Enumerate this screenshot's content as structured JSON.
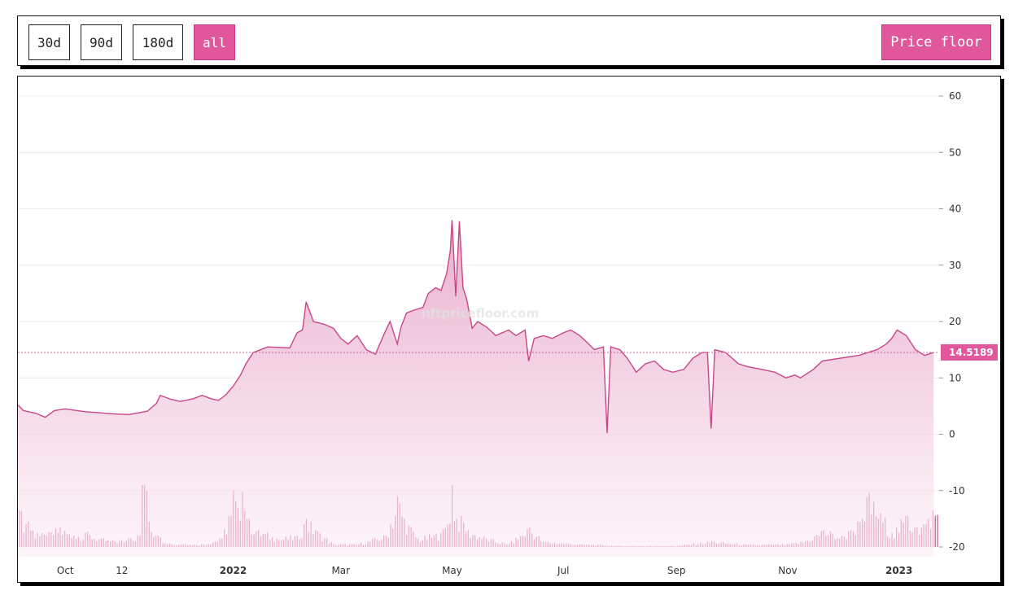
{
  "controls": {
    "ranges": [
      "30d",
      "90d",
      "180d",
      "all"
    ],
    "active_range": "all",
    "metric_label": "Price floor"
  },
  "colors": {
    "accent": "#e0589b",
    "line": "#c9468a",
    "area_top": "#e7a9c8",
    "grid": "#ececec",
    "text": "#333333"
  },
  "watermark": "nftpricefloor.com",
  "chart_data": {
    "type": "area",
    "title": "",
    "xlabel": "",
    "ylabel": "",
    "ylim": [
      -20,
      60
    ],
    "yticks": [
      60,
      50,
      40,
      30,
      20,
      10,
      0,
      -10,
      -20
    ],
    "x_tick_labels": [
      {
        "label": "Oct",
        "date": "2021-10-01",
        "bold": false
      },
      {
        "label": "12",
        "date": "2021-11-01",
        "bold": false
      },
      {
        "label": "2022",
        "date": "2022-01-01",
        "bold": true
      },
      {
        "label": "Mar",
        "date": "2022-03-01",
        "bold": false
      },
      {
        "label": "May",
        "date": "2022-05-01",
        "bold": false
      },
      {
        "label": "Jul",
        "date": "2022-07-01",
        "bold": false
      },
      {
        "label": "Sep",
        "date": "2022-09-01",
        "bold": false
      },
      {
        "label": "Nov",
        "date": "2022-11-01",
        "bold": false
      },
      {
        "label": "2023",
        "date": "2023-01-01",
        "bold": true
      }
    ],
    "x_range": [
      "2021-09-05",
      "2023-01-23"
    ],
    "last_value_label": "14.5189",
    "last_value": 14.5189,
    "series": [
      {
        "values": [
          [
            "2021-09-05",
            5.2
          ],
          [
            "2021-09-08",
            4.2
          ],
          [
            "2021-09-15",
            3.7
          ],
          [
            "2021-09-20",
            3.0
          ],
          [
            "2021-09-25",
            4.2
          ],
          [
            "2021-10-01",
            4.5
          ],
          [
            "2021-10-05",
            4.3
          ],
          [
            "2021-10-12",
            4.0
          ],
          [
            "2021-10-20",
            3.8
          ],
          [
            "2021-10-28",
            3.6
          ],
          [
            "2021-11-05",
            3.5
          ],
          [
            "2021-11-10",
            3.8
          ],
          [
            "2021-11-15",
            4.1
          ],
          [
            "2021-11-20",
            5.5
          ],
          [
            "2021-11-22",
            6.9
          ],
          [
            "2021-11-28",
            6.2
          ],
          [
            "2021-12-03",
            5.8
          ],
          [
            "2021-12-10",
            6.3
          ],
          [
            "2021-12-15",
            6.9
          ],
          [
            "2021-12-20",
            6.3
          ],
          [
            "2021-12-24",
            6.0
          ],
          [
            "2021-12-28",
            7.0
          ],
          [
            "2022-01-01",
            8.5
          ],
          [
            "2022-01-05",
            10.5
          ],
          [
            "2022-01-08",
            12.5
          ],
          [
            "2022-01-12",
            14.5
          ],
          [
            "2022-01-20",
            15.5
          ],
          [
            "2022-02-01",
            15.3
          ],
          [
            "2022-02-05",
            18.0
          ],
          [
            "2022-02-08",
            18.5
          ],
          [
            "2022-02-10",
            23.5
          ],
          [
            "2022-02-14",
            20.0
          ],
          [
            "2022-02-20",
            19.5
          ],
          [
            "2022-02-25",
            18.8
          ],
          [
            "2022-03-01",
            17.0
          ],
          [
            "2022-03-05",
            16.0
          ],
          [
            "2022-03-10",
            17.5
          ],
          [
            "2022-03-15",
            15.0
          ],
          [
            "2022-03-20",
            14.2
          ],
          [
            "2022-03-25",
            18.0
          ],
          [
            "2022-03-28",
            20.0
          ],
          [
            "2022-04-01",
            16.0
          ],
          [
            "2022-04-03",
            19.0
          ],
          [
            "2022-04-06",
            21.5
          ],
          [
            "2022-04-10",
            22.0
          ],
          [
            "2022-04-15",
            22.5
          ],
          [
            "2022-04-18",
            25.0
          ],
          [
            "2022-04-22",
            26.0
          ],
          [
            "2022-04-25",
            25.5
          ],
          [
            "2022-04-28",
            28.5
          ],
          [
            "2022-04-30",
            32.5
          ],
          [
            "2022-05-01",
            38.0
          ],
          [
            "2022-05-03",
            24.5
          ],
          [
            "2022-05-05",
            37.8
          ],
          [
            "2022-05-07",
            26.0
          ],
          [
            "2022-05-09",
            24.0
          ],
          [
            "2022-05-12",
            18.8
          ],
          [
            "2022-05-15",
            20.0
          ],
          [
            "2022-05-20",
            19.0
          ],
          [
            "2022-05-25",
            17.5
          ],
          [
            "2022-06-01",
            18.5
          ],
          [
            "2022-06-05",
            17.5
          ],
          [
            "2022-06-10",
            18.5
          ],
          [
            "2022-06-12",
            13.0
          ],
          [
            "2022-06-15",
            17.0
          ],
          [
            "2022-06-20",
            17.5
          ],
          [
            "2022-06-25",
            17.0
          ],
          [
            "2022-07-01",
            18.0
          ],
          [
            "2022-07-05",
            18.5
          ],
          [
            "2022-07-10",
            17.5
          ],
          [
            "2022-07-15",
            16.0
          ],
          [
            "2022-07-18",
            15.0
          ],
          [
            "2022-07-23",
            15.5
          ],
          [
            "2022-07-25",
            0.2
          ],
          [
            "2022-07-27",
            15.5
          ],
          [
            "2022-08-01",
            15.0
          ],
          [
            "2022-08-05",
            13.5
          ],
          [
            "2022-08-10",
            11.0
          ],
          [
            "2022-08-15",
            12.5
          ],
          [
            "2022-08-20",
            13.0
          ],
          [
            "2022-08-25",
            11.5
          ],
          [
            "2022-08-30",
            11.0
          ],
          [
            "2022-09-05",
            11.5
          ],
          [
            "2022-09-10",
            13.5
          ],
          [
            "2022-09-15",
            14.5
          ],
          [
            "2022-09-18",
            14.5
          ],
          [
            "2022-09-20",
            1.0
          ],
          [
            "2022-09-22",
            15.0
          ],
          [
            "2022-09-28",
            14.5
          ],
          [
            "2022-10-05",
            12.5
          ],
          [
            "2022-10-10",
            12.0
          ],
          [
            "2022-10-18",
            11.5
          ],
          [
            "2022-10-25",
            11.0
          ],
          [
            "2022-10-31",
            10.0
          ],
          [
            "2022-11-05",
            10.5
          ],
          [
            "2022-11-08",
            10.0
          ],
          [
            "2022-11-15",
            11.5
          ],
          [
            "2022-11-20",
            13.0
          ],
          [
            "2022-11-30",
            13.5
          ],
          [
            "2022-12-10",
            14.0
          ],
          [
            "2022-12-20",
            15.0
          ],
          [
            "2022-12-25",
            16.0
          ],
          [
            "2022-12-28",
            17.0
          ],
          [
            "2022-12-31",
            18.5
          ],
          [
            "2023-01-05",
            17.5
          ],
          [
            "2023-01-10",
            15.0
          ],
          [
            "2023-01-15",
            14.0
          ],
          [
            "2023-01-20",
            14.5189
          ]
        ]
      }
    ],
    "volume_bars": [
      [
        "2021-09-05",
        -13.5
      ],
      [
        "2021-09-10",
        -15.5
      ],
      [
        "2021-09-15",
        -17.5
      ],
      [
        "2021-09-20",
        -18.0
      ],
      [
        "2021-09-28",
        -16.5
      ],
      [
        "2021-10-05",
        -18.0
      ],
      [
        "2021-10-12",
        -17.5
      ],
      [
        "2021-10-20",
        -18.5
      ],
      [
        "2021-10-28",
        -19.0
      ],
      [
        "2021-11-05",
        -18.5
      ],
      [
        "2021-11-10",
        -18.0
      ],
      [
        "2021-11-12",
        -9.0
      ],
      [
        "2021-11-14",
        -10.0
      ],
      [
        "2021-11-16",
        -15.5
      ],
      [
        "2021-11-20",
        -18.0
      ],
      [
        "2021-11-28",
        -19.5
      ],
      [
        "2021-12-05",
        -19.5
      ],
      [
        "2021-12-15",
        -19.5
      ],
      [
        "2021-12-25",
        -18.5
      ],
      [
        "2021-12-30",
        -14.5
      ],
      [
        "2022-01-01",
        -10.0
      ],
      [
        "2022-01-03",
        -13.0
      ],
      [
        "2022-01-06",
        -10.2
      ],
      [
        "2022-01-09",
        -15.0
      ],
      [
        "2022-01-15",
        -17.0
      ],
      [
        "2022-01-25",
        -18.5
      ],
      [
        "2022-02-05",
        -18.0
      ],
      [
        "2022-02-10",
        -15.0
      ],
      [
        "2022-02-15",
        -17.0
      ],
      [
        "2022-02-25",
        -19.5
      ],
      [
        "2022-03-10",
        -19.5
      ],
      [
        "2022-03-25",
        -18.0
      ],
      [
        "2022-03-28",
        -16.0
      ],
      [
        "2022-04-01",
        -11.0
      ],
      [
        "2022-04-05",
        -15.0
      ],
      [
        "2022-04-12",
        -18.5
      ],
      [
        "2022-04-25",
        -17.5
      ],
      [
        "2022-04-28",
        -16.0
      ],
      [
        "2022-05-01",
        -9.0
      ],
      [
        "2022-05-03",
        -15.0
      ],
      [
        "2022-05-06",
        -14.5
      ],
      [
        "2022-05-10",
        -17.0
      ],
      [
        "2022-05-20",
        -18.5
      ],
      [
        "2022-06-01",
        -19.5
      ],
      [
        "2022-06-12",
        -16.5
      ],
      [
        "2022-06-20",
        -19.0
      ],
      [
        "2022-07-10",
        -19.5
      ],
      [
        "2022-08-01",
        -19.8
      ],
      [
        "2022-09-01",
        -19.8
      ],
      [
        "2022-09-20",
        -19.0
      ],
      [
        "2022-10-10",
        -19.6
      ],
      [
        "2022-11-01",
        -19.5
      ],
      [
        "2022-11-10",
        -19.0
      ],
      [
        "2022-11-20",
        -17.0
      ],
      [
        "2022-11-30",
        -18.0
      ],
      [
        "2022-12-05",
        -17.0
      ],
      [
        "2022-12-12",
        -15.0
      ],
      [
        "2022-12-15",
        -10.5
      ],
      [
        "2022-12-18",
        -12.0
      ],
      [
        "2022-12-22",
        -14.0
      ],
      [
        "2022-12-28",
        -17.5
      ],
      [
        "2023-01-05",
        -14.5
      ],
      [
        "2023-01-10",
        -16.5
      ],
      [
        "2023-01-15",
        -16.0
      ],
      [
        "2023-01-19",
        -13.5
      ]
    ]
  }
}
